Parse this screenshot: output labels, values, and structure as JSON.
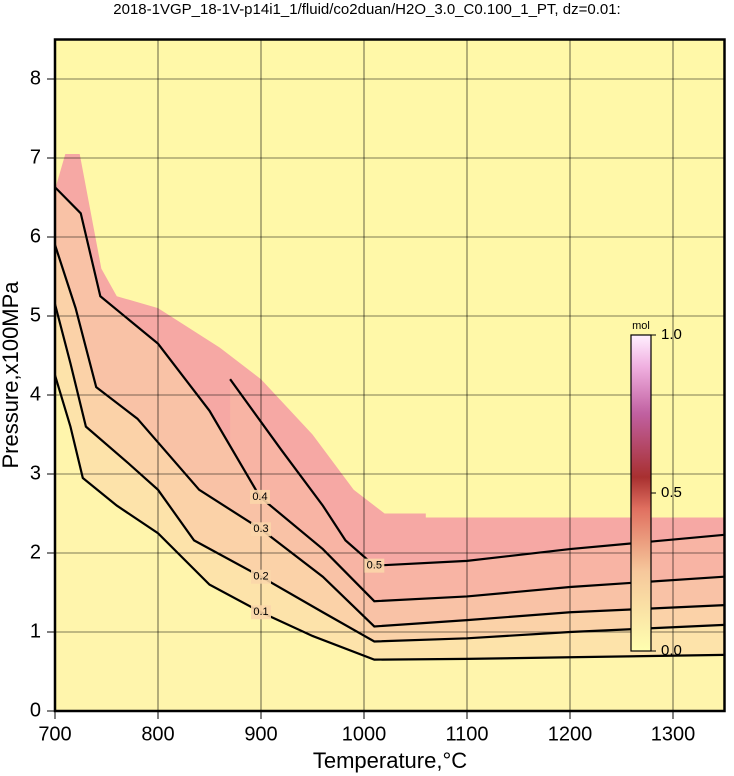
{
  "chart_data": {
    "type": "contour",
    "title": "2018-1VGP_18-1V-p14i1_1/fluid/co2duan/H2O_3.0_C0.100_1_PT, dz=0.01:",
    "x_label": "Temperature,°C",
    "y_label": "Pressure,x100MPa",
    "xlim": [
      700,
      1350
    ],
    "ylim": [
      0,
      8.5
    ],
    "xticks": [
      700,
      800,
      900,
      1000,
      1100,
      1200,
      1300
    ],
    "yticks": [
      0,
      1,
      2,
      3,
      4,
      5,
      6,
      7,
      8
    ],
    "grid": true,
    "region": {
      "color": "#f6a8a4",
      "x": [
        700,
        700,
        710,
        724,
        745,
        760,
        800,
        860,
        900,
        950,
        990,
        1020,
        1060,
        1060,
        1350,
        1350,
        700
      ],
      "y": [
        0,
        6.6,
        7.05,
        7.05,
        5.6,
        5.25,
        5.1,
        4.6,
        4.2,
        3.5,
        2.8,
        2.5,
        2.5,
        2.45,
        2.45,
        0,
        0
      ]
    },
    "background_color": "#fff8a8",
    "contours": [
      {
        "level": 0.1,
        "x": [
          700,
          715,
          727,
          760,
          800,
          850,
          900,
          950,
          1010,
          1100,
          1200,
          1350
        ],
        "y": [
          4.25,
          3.6,
          2.95,
          2.6,
          2.25,
          1.6,
          1.25,
          0.95,
          0.65,
          0.66,
          0.68,
          0.71
        ]
      },
      {
        "level": 0.2,
        "x": [
          700,
          715,
          730,
          770,
          800,
          835,
          900,
          960,
          1010,
          1100,
          1200,
          1350
        ],
        "y": [
          5.15,
          4.4,
          3.6,
          3.15,
          2.8,
          2.16,
          1.7,
          1.25,
          0.88,
          0.92,
          1.0,
          1.09
        ]
      },
      {
        "level": 0.3,
        "x": [
          700,
          720,
          740,
          780,
          840,
          900,
          960,
          1010,
          1100,
          1200,
          1350
        ],
        "y": [
          5.9,
          5.1,
          4.1,
          3.7,
          2.8,
          2.3,
          1.7,
          1.07,
          1.15,
          1.25,
          1.34
        ]
      },
      {
        "level": 0.4,
        "x": [
          700,
          725,
          744,
          800,
          850,
          899,
          960,
          1010,
          1100,
          1200,
          1350
        ],
        "y": [
          6.63,
          6.3,
          5.25,
          4.65,
          3.8,
          2.71,
          2.05,
          1.39,
          1.45,
          1.57,
          1.7
        ]
      },
      {
        "level": 0.5,
        "x": [
          870,
          920,
          960,
          982,
          1010,
          1100,
          1200,
          1350
        ],
        "y": [
          4.2,
          3.3,
          2.6,
          2.16,
          1.84,
          1.9,
          2.05,
          2.23
        ]
      }
    ],
    "colorbar": {
      "label": "mol",
      "lim": [
        0,
        1
      ],
      "ticks": [
        {
          "value": 0,
          "label": "0.0"
        },
        {
          "value": 0.5,
          "label": "0.5"
        },
        {
          "value": 1,
          "label": "1.0"
        }
      ]
    }
  }
}
